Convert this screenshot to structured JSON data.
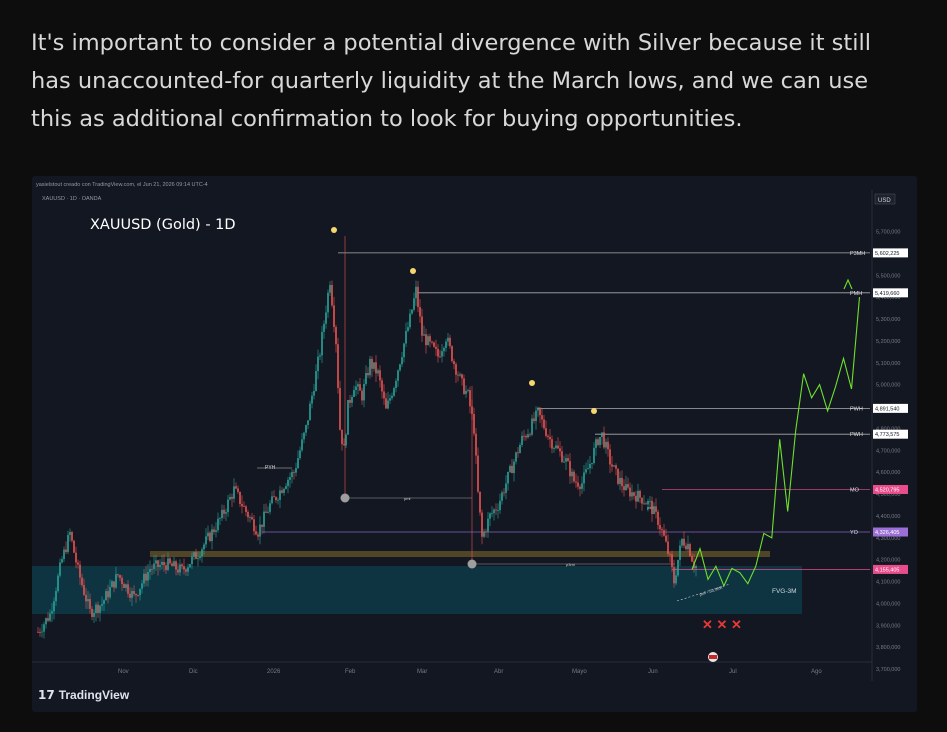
{
  "post": {
    "text": "It's important to consider a potential divergence with Silver because it still has unaccounted-for quarterly liquidity at the March lows, and we can use this as additional confirmation to look for buying opportunities."
  },
  "chart_header": {
    "credit": "yasielstout creado con TradingView.com, el Jun 21, 2026 09:14 UTC-4",
    "symbol_line": "XAUUSD · 1D · OANDA",
    "currency": "USD",
    "title": "XAUUSD (Gold) - 1D"
  },
  "branding": {
    "logo": "17",
    "name": "TradingView"
  },
  "colors": {
    "background": "#131722",
    "up": "#26a69a",
    "down": "#ef5350",
    "projection": "#6fe02b",
    "fvg": "#0e3a48",
    "magenta": "#e84c8a",
    "zone": "#6b5a2a"
  },
  "chart_data": {
    "type": "candlestick",
    "x_ticks": [
      "Nov",
      "Dic",
      "2026",
      "Feb",
      "Mar",
      "Abr",
      "Mayo",
      "Jun",
      "Jul",
      "Ago"
    ],
    "y_ticks": [
      "5,700,000",
      "5,600,000",
      "5,500,000",
      "5,400,000",
      "5,300,000",
      "5,200,000",
      "5,100,000",
      "5,000,000",
      "4,900,000",
      "4,800,000",
      "4,700,000",
      "4,600,000",
      "4,500,000",
      "4,400,000",
      "4,300,000",
      "4,200,000",
      "4,100,000",
      "4,000,000",
      "3,900,000",
      "3,800,000",
      "3,700,000"
    ],
    "ylim": [
      3650000,
      5780000
    ],
    "levels": [
      {
        "label": "P3MH",
        "value_text": "5,602,225",
        "value": 5602225,
        "style": "white"
      },
      {
        "label": "PMH",
        "value_text": "5,419,660",
        "value": 5419660,
        "style": "white"
      },
      {
        "label": "PWH",
        "value_text": "4,891,540",
        "value": 4891540,
        "style": "white"
      },
      {
        "label": "PWH",
        "value_text": "4,773,575",
        "value": 4773575,
        "style": "white"
      },
      {
        "label": "MO",
        "value_text": "4,520,795",
        "value": 4520795,
        "style": "red"
      },
      {
        "label": "YO",
        "value_text": "4,326,405",
        "value": 4326405,
        "style": "purple"
      },
      {
        "label": "",
        "value_text": "4,155,405",
        "value": 4155405,
        "style": "red"
      }
    ],
    "annotations": {
      "pyh": "PYH",
      "pml": "pml",
      "p3ml": "p3ml",
      "pml2": "pml",
      "fvg": "FVG-3M",
      "silver": "pml - SILVER",
      "crosses": "✕ ✕ ✕"
    },
    "price_keypoints": [
      [
        0,
        3870000
      ],
      [
        6,
        3950000
      ],
      [
        12,
        4200000
      ],
      [
        16,
        4320000
      ],
      [
        20,
        4150000
      ],
      [
        26,
        3960000
      ],
      [
        32,
        4000000
      ],
      [
        40,
        4130000
      ],
      [
        48,
        4030000
      ],
      [
        56,
        4160000
      ],
      [
        64,
        4180000
      ],
      [
        72,
        4150000
      ],
      [
        80,
        4230000
      ],
      [
        86,
        4310000
      ],
      [
        92,
        4400000
      ],
      [
        98,
        4520000
      ],
      [
        104,
        4420000
      ],
      [
        110,
        4330000
      ],
      [
        116,
        4450000
      ],
      [
        120,
        4500000
      ],
      [
        124,
        4560000
      ],
      [
        128,
        4600000
      ],
      [
        134,
        4800000
      ],
      [
        138,
        5000000
      ],
      [
        141,
        5150000
      ],
      [
        144,
        5350000
      ],
      [
        146,
        5480000
      ],
      [
        149,
        5200000
      ],
      [
        151,
        4800000
      ],
      [
        153,
        4700000
      ],
      [
        155,
        4900000
      ],
      [
        158,
        5000000
      ],
      [
        162,
        4950000
      ],
      [
        166,
        5100000
      ],
      [
        170,
        5050000
      ],
      [
        174,
        4880000
      ],
      [
        178,
        5000000
      ],
      [
        182,
        5150000
      ],
      [
        186,
        5300000
      ],
      [
        189,
        5430000
      ],
      [
        192,
        5230000
      ],
      [
        196,
        5180000
      ],
      [
        200,
        5130000
      ],
      [
        204,
        5220000
      ],
      [
        208,
        5100000
      ],
      [
        212,
        5000000
      ],
      [
        215,
        4950000
      ],
      [
        218,
        4800000
      ],
      [
        220,
        4500000
      ],
      [
        222,
        4300000
      ],
      [
        226,
        4400000
      ],
      [
        230,
        4450000
      ],
      [
        234,
        4550000
      ],
      [
        238,
        4650000
      ],
      [
        242,
        4750000
      ],
      [
        246,
        4800000
      ],
      [
        250,
        4870000
      ],
      [
        253,
        4810000
      ],
      [
        256,
        4750000
      ],
      [
        260,
        4700000
      ],
      [
        264,
        4650000
      ],
      [
        268,
        4560000
      ],
      [
        272,
        4550000
      ],
      [
        276,
        4640000
      ],
      [
        280,
        4750000
      ],
      [
        282,
        4770000
      ],
      [
        286,
        4650000
      ],
      [
        290,
        4570000
      ],
      [
        294,
        4520000
      ],
      [
        298,
        4500000
      ],
      [
        302,
        4480000
      ],
      [
        306,
        4450000
      ],
      [
        310,
        4380000
      ],
      [
        313,
        4300000
      ],
      [
        316,
        4200000
      ],
      [
        318,
        4100000
      ],
      [
        320,
        4200000
      ],
      [
        322,
        4290000
      ],
      [
        325,
        4270000
      ],
      [
        328,
        4180000
      ],
      [
        330,
        4160000
      ]
    ],
    "projection": [
      [
        4155000,
        4250000
      ],
      [
        4110000,
        4170000
      ],
      [
        4080000,
        4160000
      ],
      [
        4140000,
        4090000
      ],
      [
        4170000,
        4320000
      ],
      [
        4300000,
        4750000
      ],
      [
        4420000,
        4790000
      ],
      [
        5050000,
        4940000
      ],
      [
        5000000,
        4880000
      ],
      [
        4990000,
        5120000
      ],
      [
        4980000,
        5400000
      ]
    ]
  }
}
